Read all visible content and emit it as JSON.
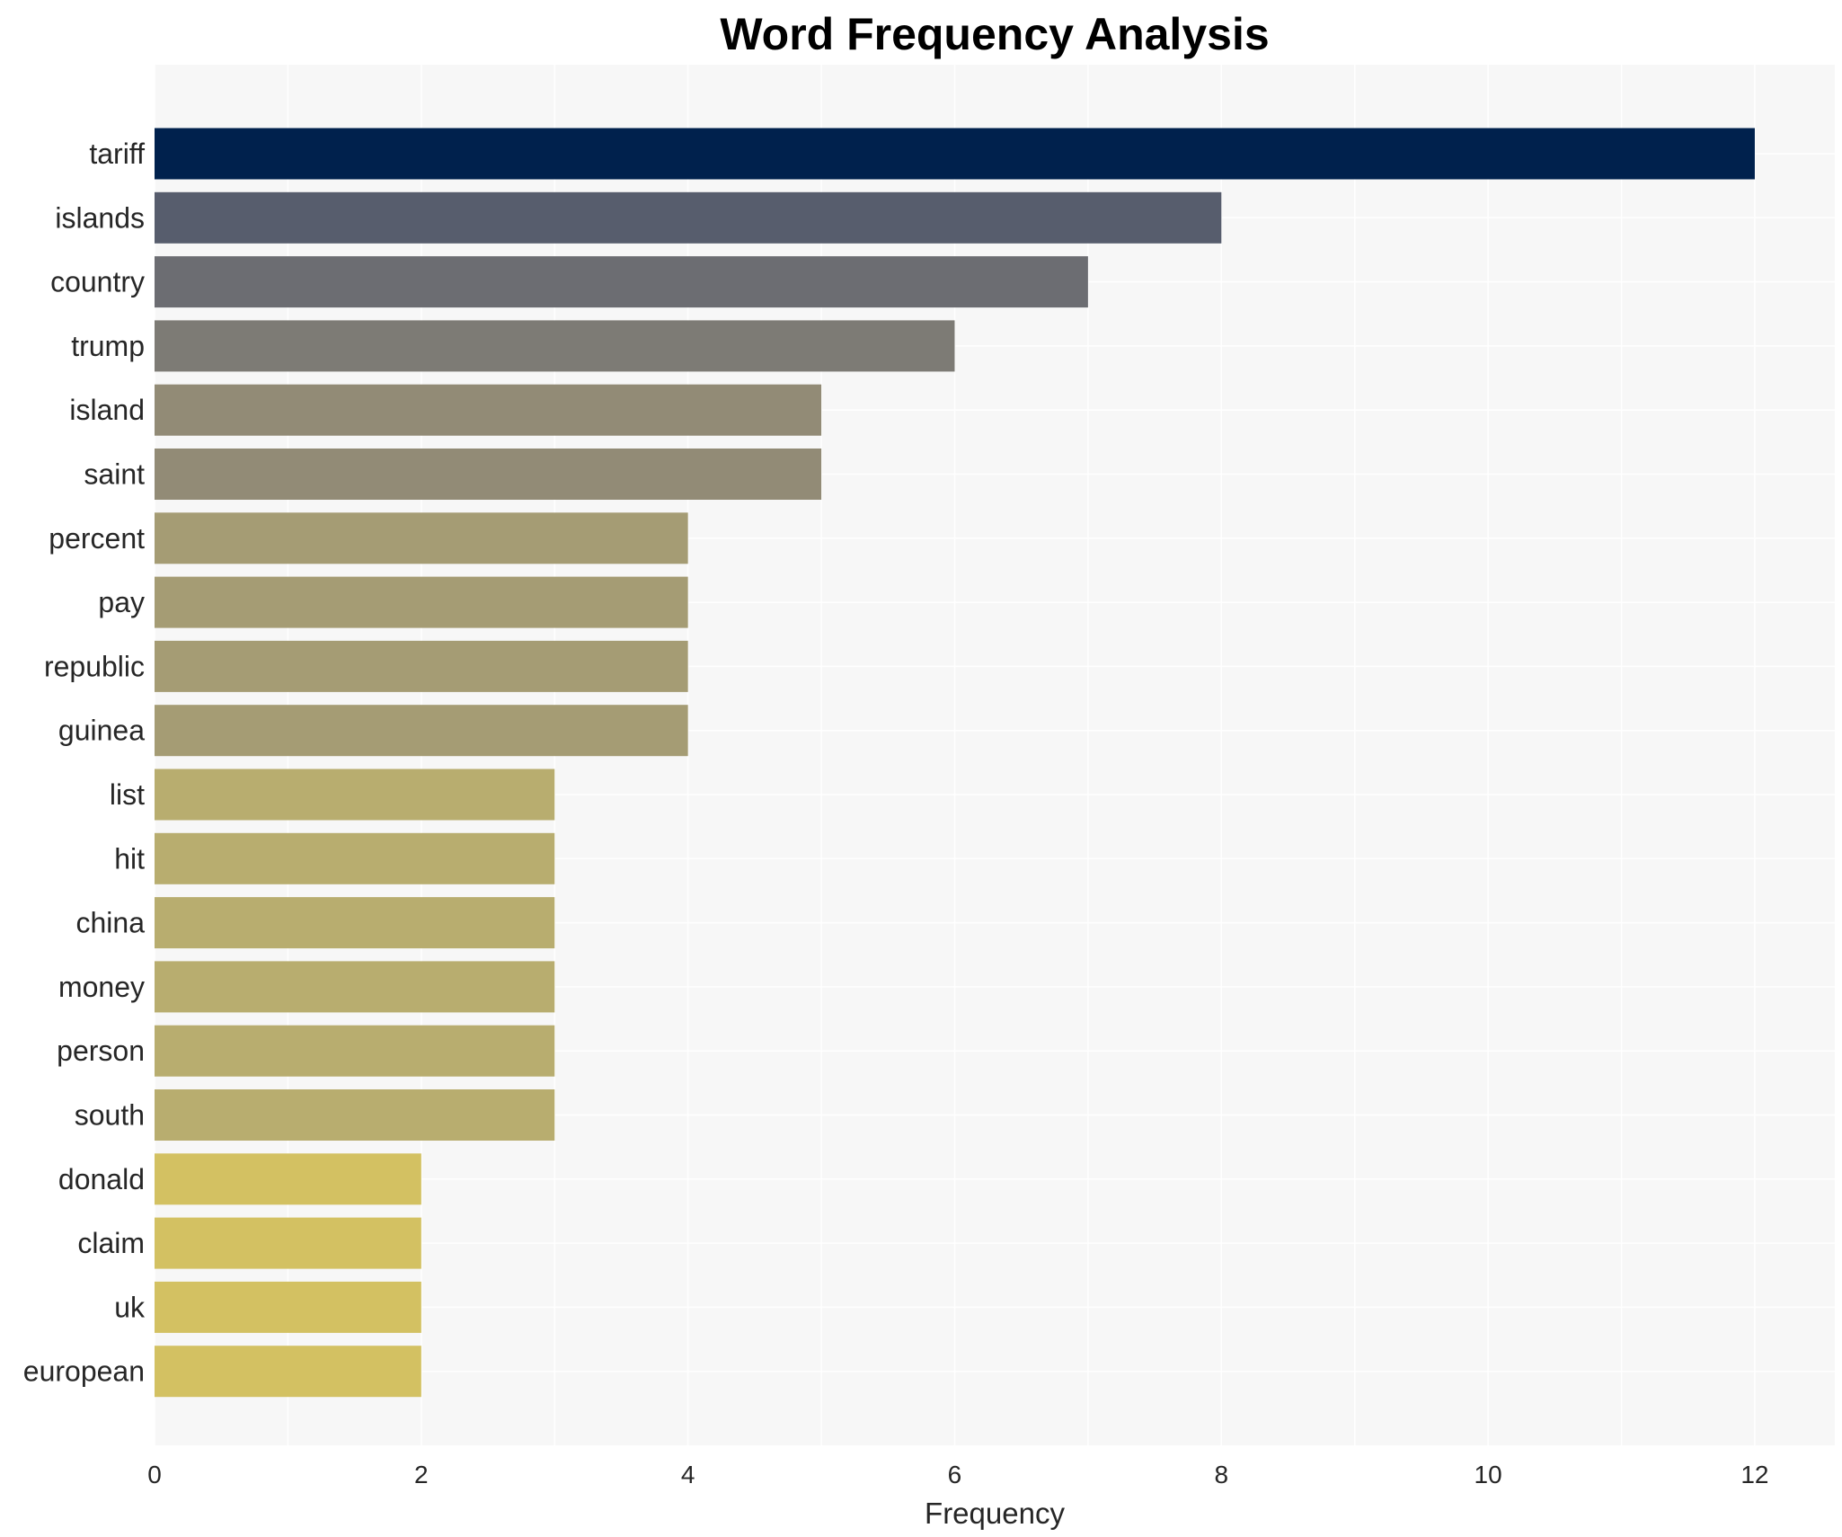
{
  "chart_data": {
    "type": "bar",
    "orientation": "horizontal",
    "title": "Word Frequency Analysis",
    "xlabel": "Frequency",
    "ylabel": "",
    "categories": [
      "tariff",
      "islands",
      "country",
      "trump",
      "island",
      "saint",
      "percent",
      "pay",
      "republic",
      "guinea",
      "list",
      "hit",
      "china",
      "money",
      "person",
      "south",
      "donald",
      "claim",
      "uk",
      "european"
    ],
    "values": [
      12,
      8,
      7,
      6,
      5,
      5,
      4,
      4,
      4,
      4,
      3,
      3,
      3,
      3,
      3,
      3,
      2,
      2,
      2,
      2
    ],
    "colors": [
      "#00214d",
      "#575d6d",
      "#6c6d72",
      "#7d7b75",
      "#928b76",
      "#928b76",
      "#a59c74",
      "#a59c74",
      "#a59c74",
      "#a59c74",
      "#b8ad6f",
      "#b8ad6f",
      "#b8ad6f",
      "#b8ad6f",
      "#b8ad6f",
      "#b8ad6f",
      "#d3c162",
      "#d3c162",
      "#d3c162",
      "#d3c162"
    ],
    "xticks": [
      0,
      2,
      4,
      6,
      8,
      10,
      12
    ],
    "xlim": [
      0,
      12.6
    ],
    "grid": true,
    "legend": "none",
    "background": "#f7f7f7"
  }
}
